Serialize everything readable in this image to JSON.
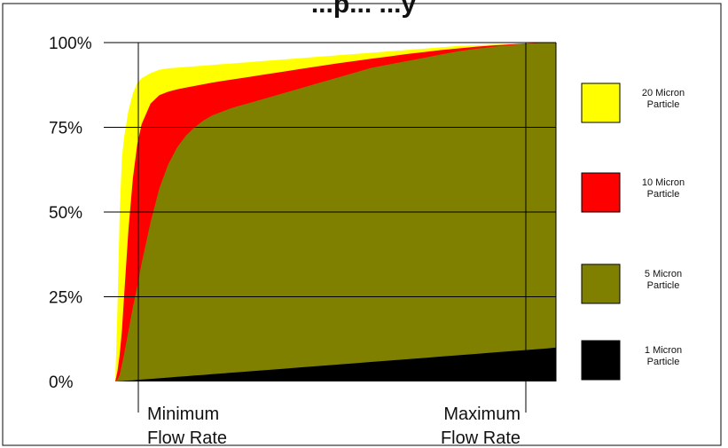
{
  "chart_data": {
    "type": "area",
    "title": "...p... ...y",
    "x_annotations": [
      "Minimum\nFlow Rate",
      "Maximum\nFlow Rate"
    ],
    "y_ticks": [
      "0%",
      "25%",
      "50%",
      "75%",
      "100%"
    ],
    "ylim": [
      0,
      100
    ],
    "grid": true,
    "legend_placement": "right",
    "x": [
      0,
      0.5,
      1,
      1.5,
      2,
      3,
      4,
      5,
      6,
      8,
      10,
      12,
      14,
      16,
      18,
      20,
      22,
      24,
      26,
      28,
      30,
      34,
      38,
      42,
      46,
      50,
      54,
      58,
      62,
      66,
      70,
      74,
      78,
      82,
      86,
      90,
      94,
      98,
      100
    ],
    "series": [
      {
        "name": "20 Micron Particle",
        "color": "#ffff00",
        "values": [
          0,
          22,
          50,
          66,
          72,
          80,
          85,
          88,
          89.5,
          91,
          92,
          92.4,
          92.6,
          92.8,
          93,
          93.2,
          93.4,
          93.6,
          93.8,
          94,
          94.2,
          94.6,
          95,
          95.4,
          95.8,
          96.2,
          96.6,
          97,
          97.4,
          97.8,
          98.2,
          98.6,
          99,
          99.2,
          99.4,
          99.6,
          99.8,
          100,
          100
        ]
      },
      {
        "name": "10 Micron Particle",
        "color": "#ff0000",
        "values": [
          0,
          3,
          8,
          15,
          25,
          45,
          60,
          70,
          76,
          82,
          84.5,
          85.5,
          86.2,
          86.7,
          87.2,
          87.7,
          88.2,
          88.6,
          89,
          89.4,
          89.8,
          90.6,
          91.4,
          92.2,
          93,
          93.8,
          94.5,
          95.2,
          95.9,
          96.6,
          97.2,
          97.8,
          98.3,
          98.8,
          99.2,
          99.5,
          99.8,
          100,
          100
        ]
      },
      {
        "name": "5 Micron Particle",
        "color": "#808000",
        "values": [
          0,
          0.5,
          2,
          5,
          8,
          15,
          22,
          28,
          35,
          47,
          57,
          64,
          69,
          72.5,
          75,
          77,
          78.5,
          79.5,
          80.5,
          81.3,
          82,
          83.5,
          85,
          86.5,
          88,
          89.5,
          91,
          92.5,
          93.5,
          94.5,
          95.5,
          96.5,
          97.5,
          98.2,
          98.8,
          99.3,
          99.7,
          100,
          100
        ]
      },
      {
        "name": "1 Micron Particle",
        "color": "#000000",
        "values": [
          0,
          0,
          0.05,
          0.1,
          0.15,
          0.25,
          0.35,
          0.45,
          0.55,
          0.75,
          0.95,
          1.15,
          1.35,
          1.55,
          1.75,
          1.95,
          2.15,
          2.35,
          2.55,
          2.75,
          2.95,
          3.35,
          3.75,
          4.15,
          4.55,
          4.95,
          5.35,
          5.75,
          6.15,
          6.55,
          6.95,
          7.35,
          7.75,
          8.15,
          8.55,
          8.95,
          9.35,
          9.75,
          10
        ]
      }
    ],
    "legend": [
      {
        "label": "20 Micron\nParticle",
        "color": "#ffff00"
      },
      {
        "label": "10 Micron\nParticle",
        "color": "#ff0000"
      },
      {
        "label": "5 Micron\nParticle",
        "color": "#808000"
      },
      {
        "label": "1 Micron\nParticle",
        "color": "#000000"
      }
    ]
  }
}
